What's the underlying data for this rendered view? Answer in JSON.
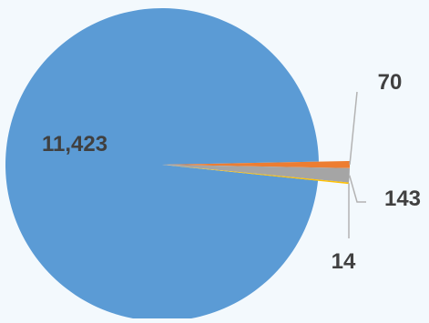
{
  "chart_data": {
    "type": "pie",
    "title": "",
    "slices": [
      {
        "value": 11423,
        "label": "11,423",
        "color": "#5b9bd5"
      },
      {
        "value": 70,
        "label": "70",
        "color": "#ed7d31"
      },
      {
        "value": 143,
        "label": "143",
        "color": "#a5a5a5"
      },
      {
        "value": 14,
        "label": "14",
        "color": "#ffc000"
      }
    ],
    "leader_line_color": "#b3b3b3",
    "legend": "none"
  }
}
